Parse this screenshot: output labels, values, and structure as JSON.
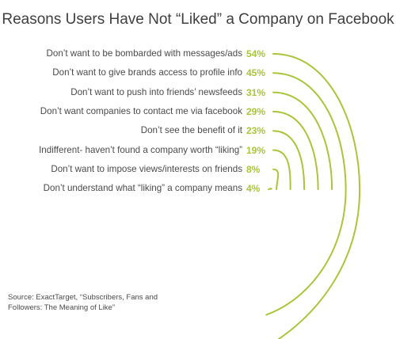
{
  "chart_data": {
    "type": "bar",
    "title": "Reasons Users Have Not “Liked” a Company on Facebook",
    "categories": [
      "Don’t want to be bombarded with messages/ads",
      "Don’t want to give brands access to profile info",
      "Don’t want to push into friends’ newsfeeds",
      "Don’t want companies to contact me via facebook",
      "Don’t see the benefit of it",
      "Indifferent- haven’t found a company worth “liking”",
      "Don’t want to impose views/interests on friends",
      "Don’t understand what “liking” a company means"
    ],
    "values": [
      54,
      45,
      31,
      29,
      23,
      19,
      8,
      4
    ],
    "value_labels": [
      "54%",
      "45%",
      "31%",
      "29%",
      "23%",
      "19%",
      "8%",
      "4%"
    ],
    "source": "Source: ExactTarget, “Subscribers, Fans and Followers: The Meaning of Like”"
  },
  "colors": {
    "accent": "#a9c63a",
    "text": "#4a4a4a",
    "title": "#3f3f3f"
  }
}
